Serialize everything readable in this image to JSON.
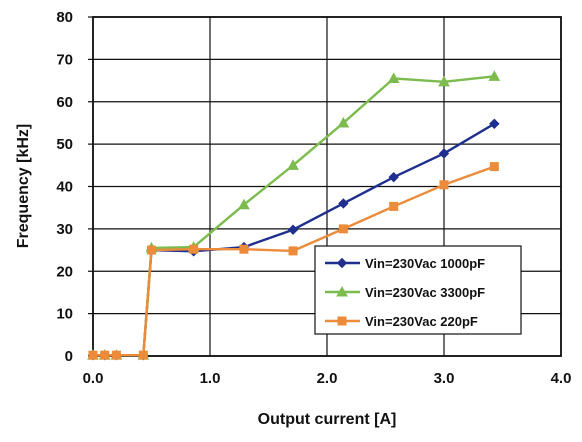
{
  "chart_data": {
    "type": "line",
    "title": "",
    "xlabel": "Output current [A]",
    "ylabel": "Frequency [kHz]",
    "xlim": [
      0,
      4
    ],
    "ylim": [
      0,
      80
    ],
    "grid": true,
    "legend_position": "lower-right",
    "x_ticks": [
      "0.0",
      "1.0",
      "2.0",
      "3.0",
      "4.0"
    ],
    "y_ticks": [
      "0",
      "10",
      "20",
      "30",
      "40",
      "50",
      "60",
      "70",
      "80"
    ],
    "series": [
      {
        "name": "Vin=230Vac 1000pF",
        "color": "#1f2f8f",
        "marker": "diamond",
        "x": [
          0.0,
          0.1,
          0.2,
          0.43,
          0.5,
          0.86,
          1.29,
          1.71,
          2.14,
          2.57,
          3.0,
          3.43
        ],
        "y": [
          0.2,
          0.2,
          0.2,
          0.2,
          25.0,
          24.7,
          25.7,
          29.8,
          36.0,
          42.2,
          47.8,
          54.8
        ]
      },
      {
        "name": "Vin=230Vac 3300pF",
        "color": "#7cbc4e",
        "marker": "triangle",
        "x": [
          0.0,
          0.1,
          0.2,
          0.43,
          0.5,
          0.86,
          1.29,
          1.71,
          2.14,
          2.57,
          3.0,
          3.43
        ],
        "y": [
          0.2,
          0.2,
          0.2,
          0.2,
          25.5,
          25.7,
          35.7,
          45.0,
          55.0,
          65.5,
          64.7,
          66.0
        ]
      },
      {
        "name": "Vin=230Vac 220pF",
        "color": "#ec8b3a",
        "marker": "square",
        "x": [
          0.0,
          0.1,
          0.2,
          0.43,
          0.5,
          0.86,
          1.29,
          1.71,
          2.14,
          2.57,
          3.0,
          3.43
        ],
        "y": [
          0.2,
          0.2,
          0.2,
          0.2,
          25.0,
          25.2,
          25.2,
          24.8,
          30.0,
          35.3,
          40.4,
          44.7
        ]
      }
    ]
  }
}
